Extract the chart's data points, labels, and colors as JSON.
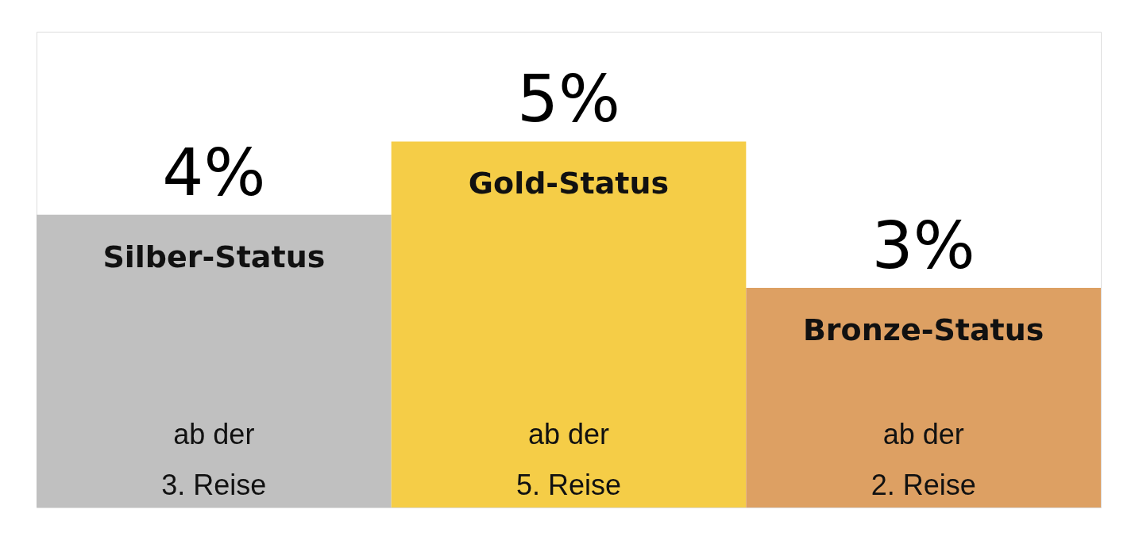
{
  "chart_data": {
    "type": "bar",
    "categories": [
      "Silber-Status",
      "Gold-Status",
      "Bronze-Status"
    ],
    "values": [
      4,
      5,
      3
    ],
    "value_labels": [
      "4%",
      "5%",
      "3%"
    ],
    "colors": [
      "#c0c0c0",
      "#f5cd47",
      "#dda063"
    ],
    "annotations": [
      "ab der\n3. Reise",
      "ab der\n5. Reise",
      "ab der\n2. Reise"
    ]
  }
}
